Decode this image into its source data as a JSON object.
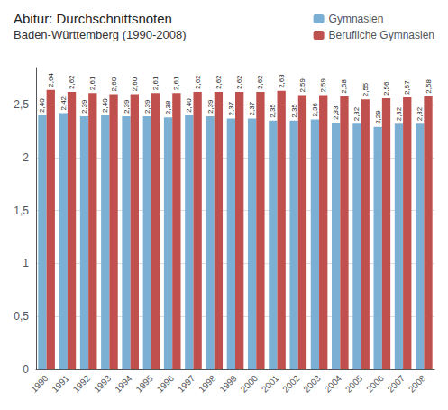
{
  "chart_data": {
    "type": "bar",
    "title": "Abitur: Durchschnittsnoten",
    "subtitle": "Baden-Württemberg (1990-2008)",
    "categories": [
      "1990",
      "1991",
      "1992",
      "1993",
      "1994",
      "1995",
      "1996",
      "1997",
      "1998",
      "1999",
      "2000",
      "2001",
      "2002",
      "2003",
      "2004",
      "2005",
      "2006",
      "2007",
      "2008"
    ],
    "series": [
      {
        "name": "Gymnasien",
        "color": "#7BAFD4",
        "values": [
          2.4,
          2.42,
          2.39,
          2.4,
          2.39,
          2.39,
          2.38,
          2.4,
          2.39,
          2.37,
          2.37,
          2.35,
          2.35,
          2.36,
          2.33,
          2.32,
          2.29,
          2.32,
          2.32
        ],
        "value_labels": [
          "2,40",
          "2,42",
          "2,39",
          "2,40",
          "2,39",
          "2,39",
          "2,38",
          "2,40",
          "2,39",
          "2,37",
          "2,37",
          "2,35",
          "2,35",
          "2,36",
          "2,33",
          "2,32",
          "2,29",
          "2,32",
          "2,32"
        ]
      },
      {
        "name": "Berufliche Gymnasien",
        "color": "#C0504D",
        "values": [
          2.64,
          2.62,
          2.61,
          2.6,
          2.6,
          2.61,
          2.61,
          2.62,
          2.62,
          2.62,
          2.62,
          2.63,
          2.59,
          2.59,
          2.58,
          2.55,
          2.56,
          2.57,
          2.58
        ],
        "value_labels": [
          "2,64",
          "2,62",
          "2,61",
          "2,60",
          "2,60",
          "2,61",
          "2,61",
          "2,62",
          "2,62",
          "2,62",
          "2,62",
          "2,63",
          "2,59",
          "2,59",
          "2,58",
          "2,55",
          "2,56",
          "2,57",
          "2,58"
        ]
      }
    ],
    "ylim": [
      0,
      2.85
    ],
    "yticks": [
      0,
      {
        "value": 0.5,
        "label": "0,5"
      },
      1,
      {
        "value": 1.5,
        "label": "1,5"
      },
      2,
      {
        "value": 2.5,
        "label": "2,5"
      }
    ],
    "grid": true,
    "legend": "upper right",
    "data_labels": true
  }
}
